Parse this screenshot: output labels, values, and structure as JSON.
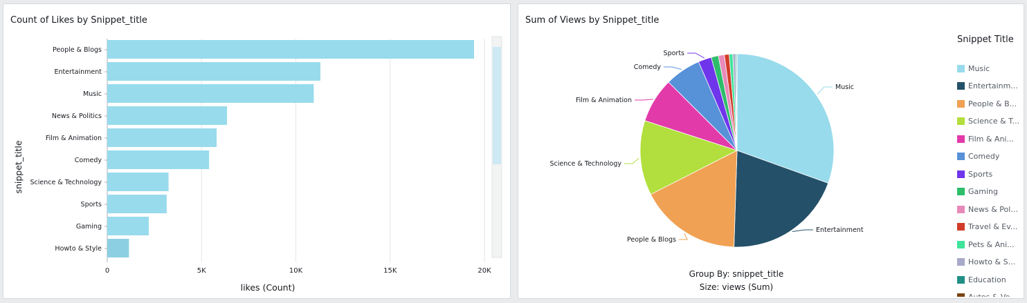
{
  "bar_panel": {
    "title": "Count of Likes by Snippet_title"
  },
  "pie_panel": {
    "title": "Sum of Views by Snippet_title",
    "legend_title": "Snippet Title",
    "group_by": "Group By: snippet_title",
    "size_by": "Size: views (Sum)"
  },
  "chart_data": [
    {
      "type": "bar",
      "orientation": "horizontal",
      "title": "Count of Likes by Snippet_title",
      "xlabel": "likes (Count)",
      "ylabel": "snippet_title",
      "categories": [
        "People & Blogs",
        "Entertainment",
        "Music",
        "News & Politics",
        "Film & Animation",
        "Comedy",
        "Science & Technology",
        "Sports",
        "Gaming",
        "Howto & Style"
      ],
      "values": [
        19450,
        11300,
        10950,
        6350,
        5800,
        5400,
        3250,
        3150,
        2200,
        1150
      ],
      "xlim": [
        0,
        20000
      ],
      "xticks": [
        0,
        5000,
        10000,
        15000,
        20000
      ],
      "xtick_labels": [
        "0",
        "5K",
        "10K",
        "15K",
        "20K"
      ],
      "grid": true,
      "bar_color": "#98dbec"
    },
    {
      "type": "pie",
      "title": "Sum of Views by Snippet_title",
      "legend_title": "Snippet Title",
      "legend_position": "right",
      "slices": [
        {
          "name": "Music",
          "value": 30.5,
          "color": "#98dbec",
          "legend_label": "Music",
          "label": "Music"
        },
        {
          "name": "Entertainment",
          "value": 20.0,
          "color": "#245069",
          "legend_label": "Entertainm...",
          "label": "Entertainment"
        },
        {
          "name": "People & Blogs",
          "value": 17.0,
          "color": "#f0a153",
          "legend_label": "People & B...",
          "label": "People & Blogs"
        },
        {
          "name": "Science & Technology",
          "value": 12.5,
          "color": "#b2df3d",
          "legend_label": "Science & T...",
          "label": "Science & Technology"
        },
        {
          "name": "Film & Animation",
          "value": 7.5,
          "color": "#e23aa9",
          "legend_label": "Film & Ani...",
          "label": "Film & Animation"
        },
        {
          "name": "Comedy",
          "value": 6.0,
          "color": "#5791d8",
          "legend_label": "Comedy",
          "label": "Comedy"
        },
        {
          "name": "Sports",
          "value": 2.2,
          "color": "#6f35eb",
          "legend_label": "Sports",
          "label": "Sports"
        },
        {
          "name": "Gaming",
          "value": 1.2,
          "color": "#2ebd6b",
          "legend_label": "Gaming",
          "label": ""
        },
        {
          "name": "News & Politics",
          "value": 1.0,
          "color": "#e88ab9",
          "legend_label": "News & Pol...",
          "label": ""
        },
        {
          "name": "Travel & Events",
          "value": 0.8,
          "color": "#d13b29",
          "legend_label": "Travel & Ev...",
          "label": ""
        },
        {
          "name": "Pets & Animals",
          "value": 0.6,
          "color": "#3fe49a",
          "legend_label": "Pets & Ani...",
          "label": ""
        },
        {
          "name": "Howto & Style",
          "value": 0.4,
          "color": "#a7a9c8",
          "legend_label": "Howto & S...",
          "label": ""
        },
        {
          "name": "Education",
          "value": 0.2,
          "color": "#218f86",
          "legend_label": "Education",
          "label": ""
        },
        {
          "name": "Autos & Vehicles",
          "value": 0.1,
          "color": "#7b4414",
          "legend_label": "Autos & Ve...",
          "label": ""
        }
      ]
    }
  ]
}
